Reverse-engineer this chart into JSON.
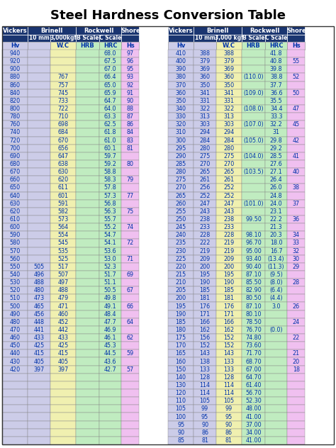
{
  "title": "Steel Hardness Conversion Table",
  "left_data": [
    [
      "940",
      "",
      "",
      "",
      "68.0",
      "97"
    ],
    [
      "920",
      "",
      "",
      "",
      "67.5",
      "96"
    ],
    [
      "900",
      "",
      "",
      "",
      "67.0",
      "95"
    ],
    [
      "880",
      "",
      "767",
      "",
      "66.4",
      "93"
    ],
    [
      "860",
      "",
      "757",
      "",
      "65.0",
      "92"
    ],
    [
      "840",
      "",
      "745",
      "",
      "65.9",
      "91"
    ],
    [
      "820",
      "",
      "733",
      "",
      "64.7",
      "90"
    ],
    [
      "800",
      "",
      "722",
      "",
      "64.0",
      "88"
    ],
    [
      "780",
      "",
      "710",
      "",
      "63.3",
      "87"
    ],
    [
      "760",
      "",
      "698",
      "",
      "62.5",
      "86"
    ],
    [
      "740",
      "",
      "684",
      "",
      "61.8",
      "84"
    ],
    [
      "720",
      "",
      "670",
      "",
      "61.0",
      "83"
    ],
    [
      "700",
      "",
      "656",
      "",
      "60.1",
      "81"
    ],
    [
      "690",
      "",
      "647",
      "",
      "59.7",
      ""
    ],
    [
      "680",
      "",
      "638",
      "",
      "59.2",
      "80"
    ],
    [
      "670",
      "",
      "630",
      "",
      "58.8",
      ""
    ],
    [
      "660",
      "",
      "620",
      "",
      "58.3",
      "79"
    ],
    [
      "650",
      "",
      "611",
      "",
      "57.8",
      ""
    ],
    [
      "640",
      "",
      "601",
      "",
      "57.3",
      "77"
    ],
    [
      "630",
      "",
      "591",
      "",
      "56.8",
      ""
    ],
    [
      "620",
      "",
      "582",
      "",
      "56.3",
      "75"
    ],
    [
      "610",
      "",
      "573",
      "",
      "55.7",
      ""
    ],
    [
      "600",
      "",
      "564",
      "",
      "55.2",
      "74"
    ],
    [
      "590",
      "",
      "554",
      "",
      "54.7",
      ""
    ],
    [
      "580",
      "",
      "545",
      "",
      "54.1",
      "72"
    ],
    [
      "570",
      "",
      "535",
      "",
      "53.6",
      ""
    ],
    [
      "560",
      "",
      "525",
      "",
      "53.0",
      "71"
    ],
    [
      "550",
      "505",
      "517",
      "",
      "52.3",
      ""
    ],
    [
      "540",
      "496",
      "507",
      "",
      "51.7",
      "69"
    ],
    [
      "530",
      "488",
      "497",
      "",
      "51.1",
      ""
    ],
    [
      "520",
      "480",
      "488",
      "",
      "50.5",
      "67"
    ],
    [
      "510",
      "473",
      "479",
      "",
      "49.8",
      ""
    ],
    [
      "500",
      "465",
      "471",
      "",
      "49.1",
      "66"
    ],
    [
      "490",
      "456",
      "460",
      "",
      "48.4",
      ""
    ],
    [
      "480",
      "448",
      "452",
      "",
      "47.7",
      "64"
    ],
    [
      "470",
      "441",
      "442",
      "",
      "46.9",
      ""
    ],
    [
      "460",
      "433",
      "433",
      "",
      "46.1",
      "62"
    ],
    [
      "450",
      "425",
      "425",
      "",
      "45.3",
      ""
    ],
    [
      "440",
      "415",
      "415",
      "",
      "44.5",
      "59"
    ],
    [
      "430",
      "405",
      "405",
      "",
      "43.6",
      ""
    ],
    [
      "420",
      "397",
      "397",
      "",
      "42.7",
      "57"
    ],
    [
      "",
      "",
      "",
      "",
      "",
      ""
    ],
    [
      "",
      "",
      "",
      "",
      "",
      ""
    ],
    [
      "",
      "",
      "",
      "",
      "",
      ""
    ],
    [
      "",
      "",
      "",
      "",
      "",
      ""
    ],
    [
      "",
      "",
      "",
      "",
      "",
      ""
    ],
    [
      "",
      "",
      "",
      "",
      "",
      ""
    ],
    [
      "",
      "",
      "",
      "",
      "",
      ""
    ],
    [
      "",
      "",
      "",
      "",
      "",
      ""
    ],
    [
      "",
      "",
      "",
      "",
      "",
      ""
    ]
  ],
  "right_data": [
    [
      "410",
      "388",
      "388",
      "",
      "41.8",
      ""
    ],
    [
      "400",
      "379",
      "379",
      "",
      "40.8",
      "55"
    ],
    [
      "390",
      "369",
      "369",
      "",
      "39.8",
      ""
    ],
    [
      "380",
      "360",
      "360",
      "(110.0)",
      "38.8",
      "52"
    ],
    [
      "370",
      "350",
      "350",
      "",
      "37.7",
      ""
    ],
    [
      "360",
      "341",
      "341",
      "(109.0)",
      "36.6",
      "50"
    ],
    [
      "350",
      "331",
      "331",
      "",
      "35.5",
      ""
    ],
    [
      "340",
      "322",
      "322",
      "(108.0)",
      "34.4",
      "47"
    ],
    [
      "330",
      "313",
      "313",
      "",
      "33.3",
      ""
    ],
    [
      "320",
      "303",
      "303",
      "(107.0)",
      "32.2",
      "45"
    ],
    [
      "310",
      "294",
      "294",
      "",
      "31",
      ""
    ],
    [
      "300",
      "284",
      "284",
      "(105.0)",
      "29.8",
      "42"
    ],
    [
      "295",
      "280",
      "280",
      "",
      "29.2",
      ""
    ],
    [
      "290",
      "275",
      "275",
      "(104.0)",
      "28.5",
      "41"
    ],
    [
      "285",
      "270",
      "270",
      "",
      "27.6",
      ""
    ],
    [
      "280",
      "265",
      "265",
      "(103.5)",
      "27.1",
      "40"
    ],
    [
      "275",
      "261",
      "261",
      "",
      "26.4",
      ""
    ],
    [
      "270",
      "256",
      "252",
      "",
      "26.0",
      "38"
    ],
    [
      "265",
      "252",
      "252",
      "",
      "24.8",
      ""
    ],
    [
      "260",
      "247",
      "247",
      "(101.0)",
      "24.0",
      "37"
    ],
    [
      "255",
      "243",
      "243",
      "",
      "23.1",
      ""
    ],
    [
      "250",
      "238",
      "238",
      "99.50",
      "22.2",
      "36"
    ],
    [
      "245",
      "233",
      "233",
      "",
      "21.3",
      ""
    ],
    [
      "240",
      "228",
      "228",
      "98.10",
      "20.3",
      "34"
    ],
    [
      "235",
      "222",
      "219",
      "96.70",
      "18.0",
      "33"
    ],
    [
      "230",
      "219",
      "219",
      "95.00",
      "16.7",
      "32"
    ],
    [
      "225",
      "209",
      "209",
      "93.40",
      "(13.4)",
      "30"
    ],
    [
      "220",
      "200",
      "200",
      "90.40",
      "(11.3)",
      "29"
    ],
    [
      "215",
      "195",
      "195",
      "87.10",
      "(9.5)",
      ""
    ],
    [
      "210",
      "190",
      "190",
      "85.50",
      "(8.0)",
      "28"
    ],
    [
      "205",
      "185",
      "185",
      "82.90",
      "(6.4)",
      ""
    ],
    [
      "200",
      "181",
      "181",
      "80.50",
      "(4.4)",
      ""
    ],
    [
      "195",
      "176",
      "176",
      "87.10",
      "3.0",
      "26"
    ],
    [
      "190",
      "171",
      "171",
      "80.10",
      "",
      ""
    ],
    [
      "185",
      "166",
      "166",
      "78.50",
      "",
      "24"
    ],
    [
      "180",
      "162",
      "162",
      "76.70",
      "(0.0)",
      ""
    ],
    [
      "175",
      "156",
      "152",
      "74.80",
      "",
      "22"
    ],
    [
      "170",
      "152",
      "152",
      "73.60",
      "",
      ""
    ],
    [
      "165",
      "143",
      "143",
      "71.70",
      "",
      "21"
    ],
    [
      "160",
      "138",
      "133",
      "68.70",
      "",
      "20"
    ],
    [
      "150",
      "133",
      "133",
      "67.00",
      "",
      "18"
    ],
    [
      "140",
      "128",
      "128",
      "64.70",
      "",
      ""
    ],
    [
      "130",
      "114",
      "114",
      "61.40",
      "",
      ""
    ],
    [
      "120",
      "114",
      "114",
      "56.70",
      "",
      ""
    ],
    [
      "110",
      "105",
      "105",
      "52.30",
      "",
      ""
    ],
    [
      "105",
      "99",
      "99",
      "48.00",
      "",
      ""
    ],
    [
      "100",
      "95",
      "95",
      "41.00",
      "",
      ""
    ],
    [
      "95",
      "90",
      "90",
      "37.00",
      "",
      ""
    ],
    [
      "90",
      "86",
      "86",
      "34.00",
      "",
      ""
    ],
    [
      "85",
      "81",
      "81",
      "41.00",
      "",
      ""
    ]
  ],
  "col_colors": [
    "#cccce8",
    "#cccce8",
    "#f0f0b0",
    "#c0ecc0",
    "#c0ecc0",
    "#f0c0f0"
  ],
  "header_blue": "#1a3570",
  "header_text": "#ffffff",
  "data_text": "#0033aa",
  "border_color": "#888888",
  "title_fontsize": 13,
  "header_fontsize": 6.0,
  "data_fontsize": 5.8
}
